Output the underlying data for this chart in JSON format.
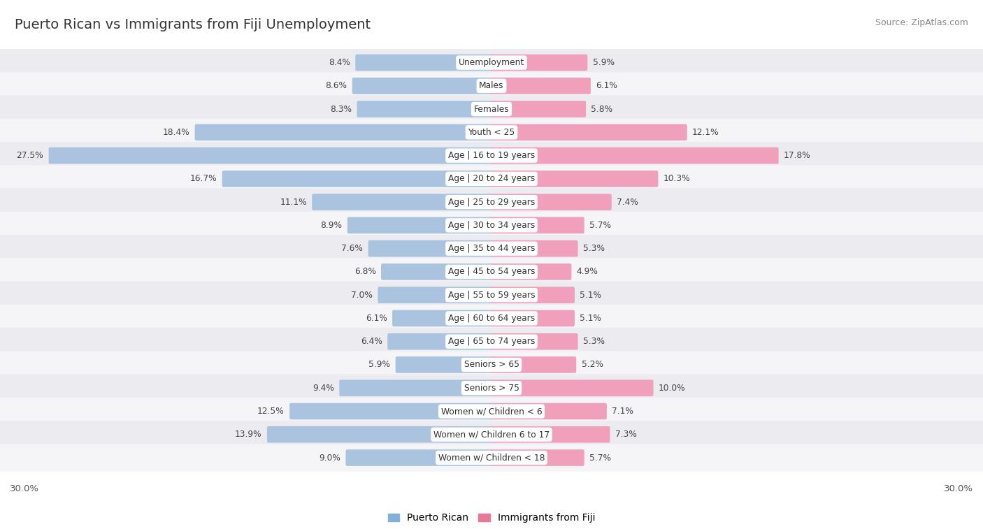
{
  "title": "Puerto Rican vs Immigrants from Fiji Unemployment",
  "source": "Source: ZipAtlas.com",
  "categories": [
    "Unemployment",
    "Males",
    "Females",
    "Youth < 25",
    "Age | 16 to 19 years",
    "Age | 20 to 24 years",
    "Age | 25 to 29 years",
    "Age | 30 to 34 years",
    "Age | 35 to 44 years",
    "Age | 45 to 54 years",
    "Age | 55 to 59 years",
    "Age | 60 to 64 years",
    "Age | 65 to 74 years",
    "Seniors > 65",
    "Seniors > 75",
    "Women w/ Children < 6",
    "Women w/ Children 6 to 17",
    "Women w/ Children < 18"
  ],
  "left_values": [
    8.4,
    8.6,
    8.3,
    18.4,
    27.5,
    16.7,
    11.1,
    8.9,
    7.6,
    6.8,
    7.0,
    6.1,
    6.4,
    5.9,
    9.4,
    12.5,
    13.9,
    9.0
  ],
  "right_values": [
    5.9,
    6.1,
    5.8,
    12.1,
    17.8,
    10.3,
    7.4,
    5.7,
    5.3,
    4.9,
    5.1,
    5.1,
    5.3,
    5.2,
    10.0,
    7.1,
    7.3,
    5.7
  ],
  "left_color": "#aac4e0",
  "right_color": "#f0a0ba",
  "row_bg_even": "#ebebf0",
  "row_bg_odd": "#f5f5f8",
  "axis_max": 30.0,
  "legend_left": "Puerto Rican",
  "legend_right": "Immigrants from Fiji",
  "left_color_legend": "#82b0d8",
  "right_color_legend": "#e87898",
  "title_fontsize": 14,
  "source_fontsize": 9,
  "label_fontsize": 8.8,
  "value_fontsize": 8.8
}
